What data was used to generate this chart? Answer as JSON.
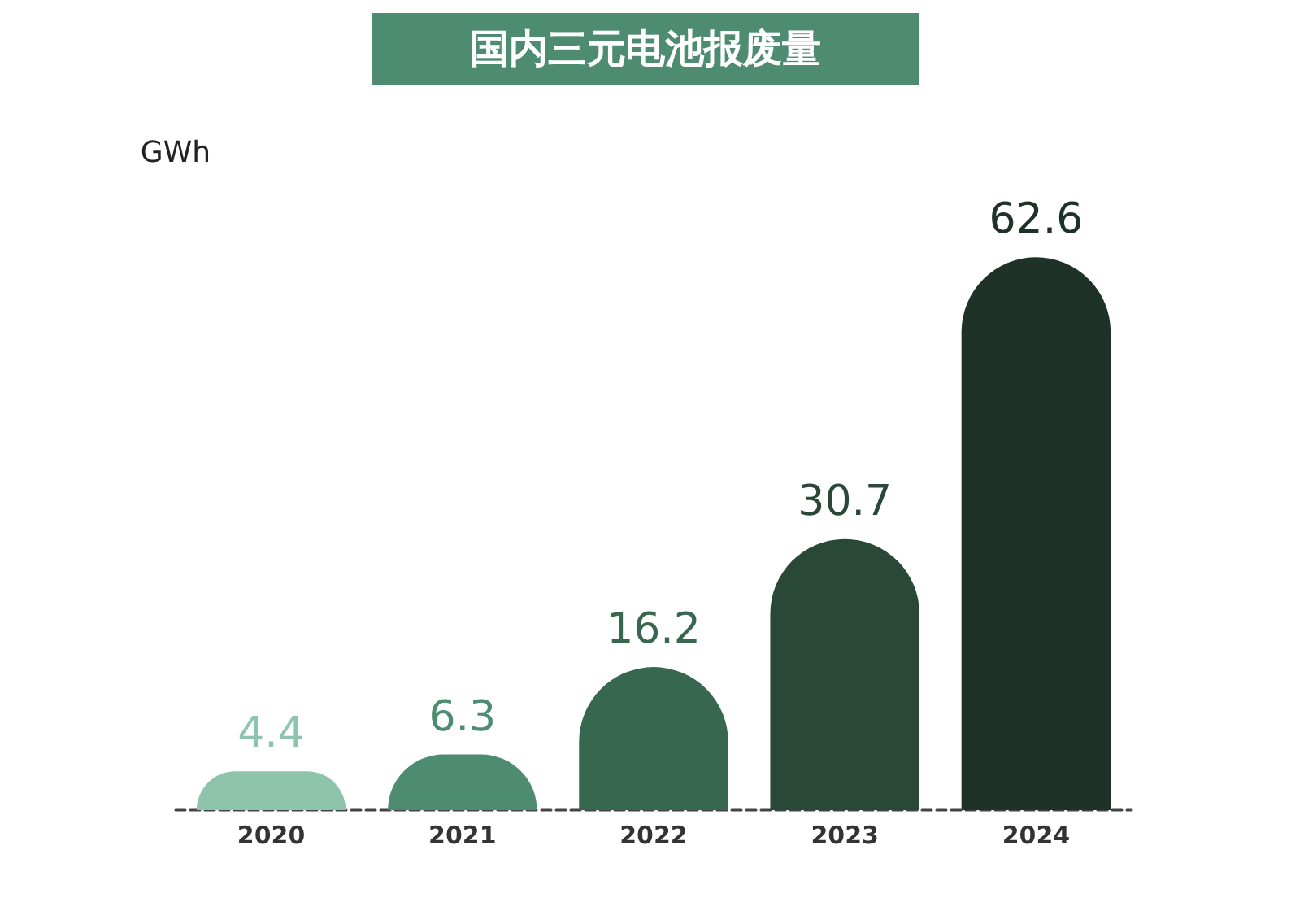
{
  "chart_data": {
    "type": "bar",
    "title": "国内三元电池报废量",
    "ylabel": "GWh",
    "categories": [
      "2020",
      "2021",
      "2022",
      "2023",
      "2024"
    ],
    "values": [
      4.4,
      6.3,
      16.2,
      30.7,
      62.6
    ],
    "colors": [
      "#8dc4ab",
      "#4e8c72",
      "#37684f",
      "#294837",
      "#1e3227"
    ],
    "data_labels": true
  }
}
